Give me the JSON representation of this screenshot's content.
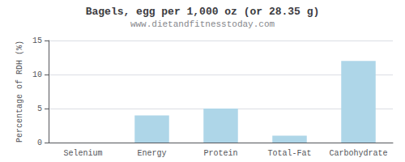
{
  "chart_data": {
    "type": "bar",
    "title": "Bagels, egg per 1,000 oz (or 28.35 g)",
    "subtitle": "www.dietandfitnesstoday.com",
    "categories": [
      "Selenium",
      "Energy",
      "Protein",
      "Total-Fat",
      "Carbohydrate"
    ],
    "values": [
      0,
      4,
      5,
      1,
      12
    ],
    "color": "#aed6e8",
    "ylabel": "Percentage of RDH (%)",
    "ylim": [
      0,
      15
    ],
    "yticks": [
      0,
      5,
      10,
      15
    ],
    "grid": true
  }
}
